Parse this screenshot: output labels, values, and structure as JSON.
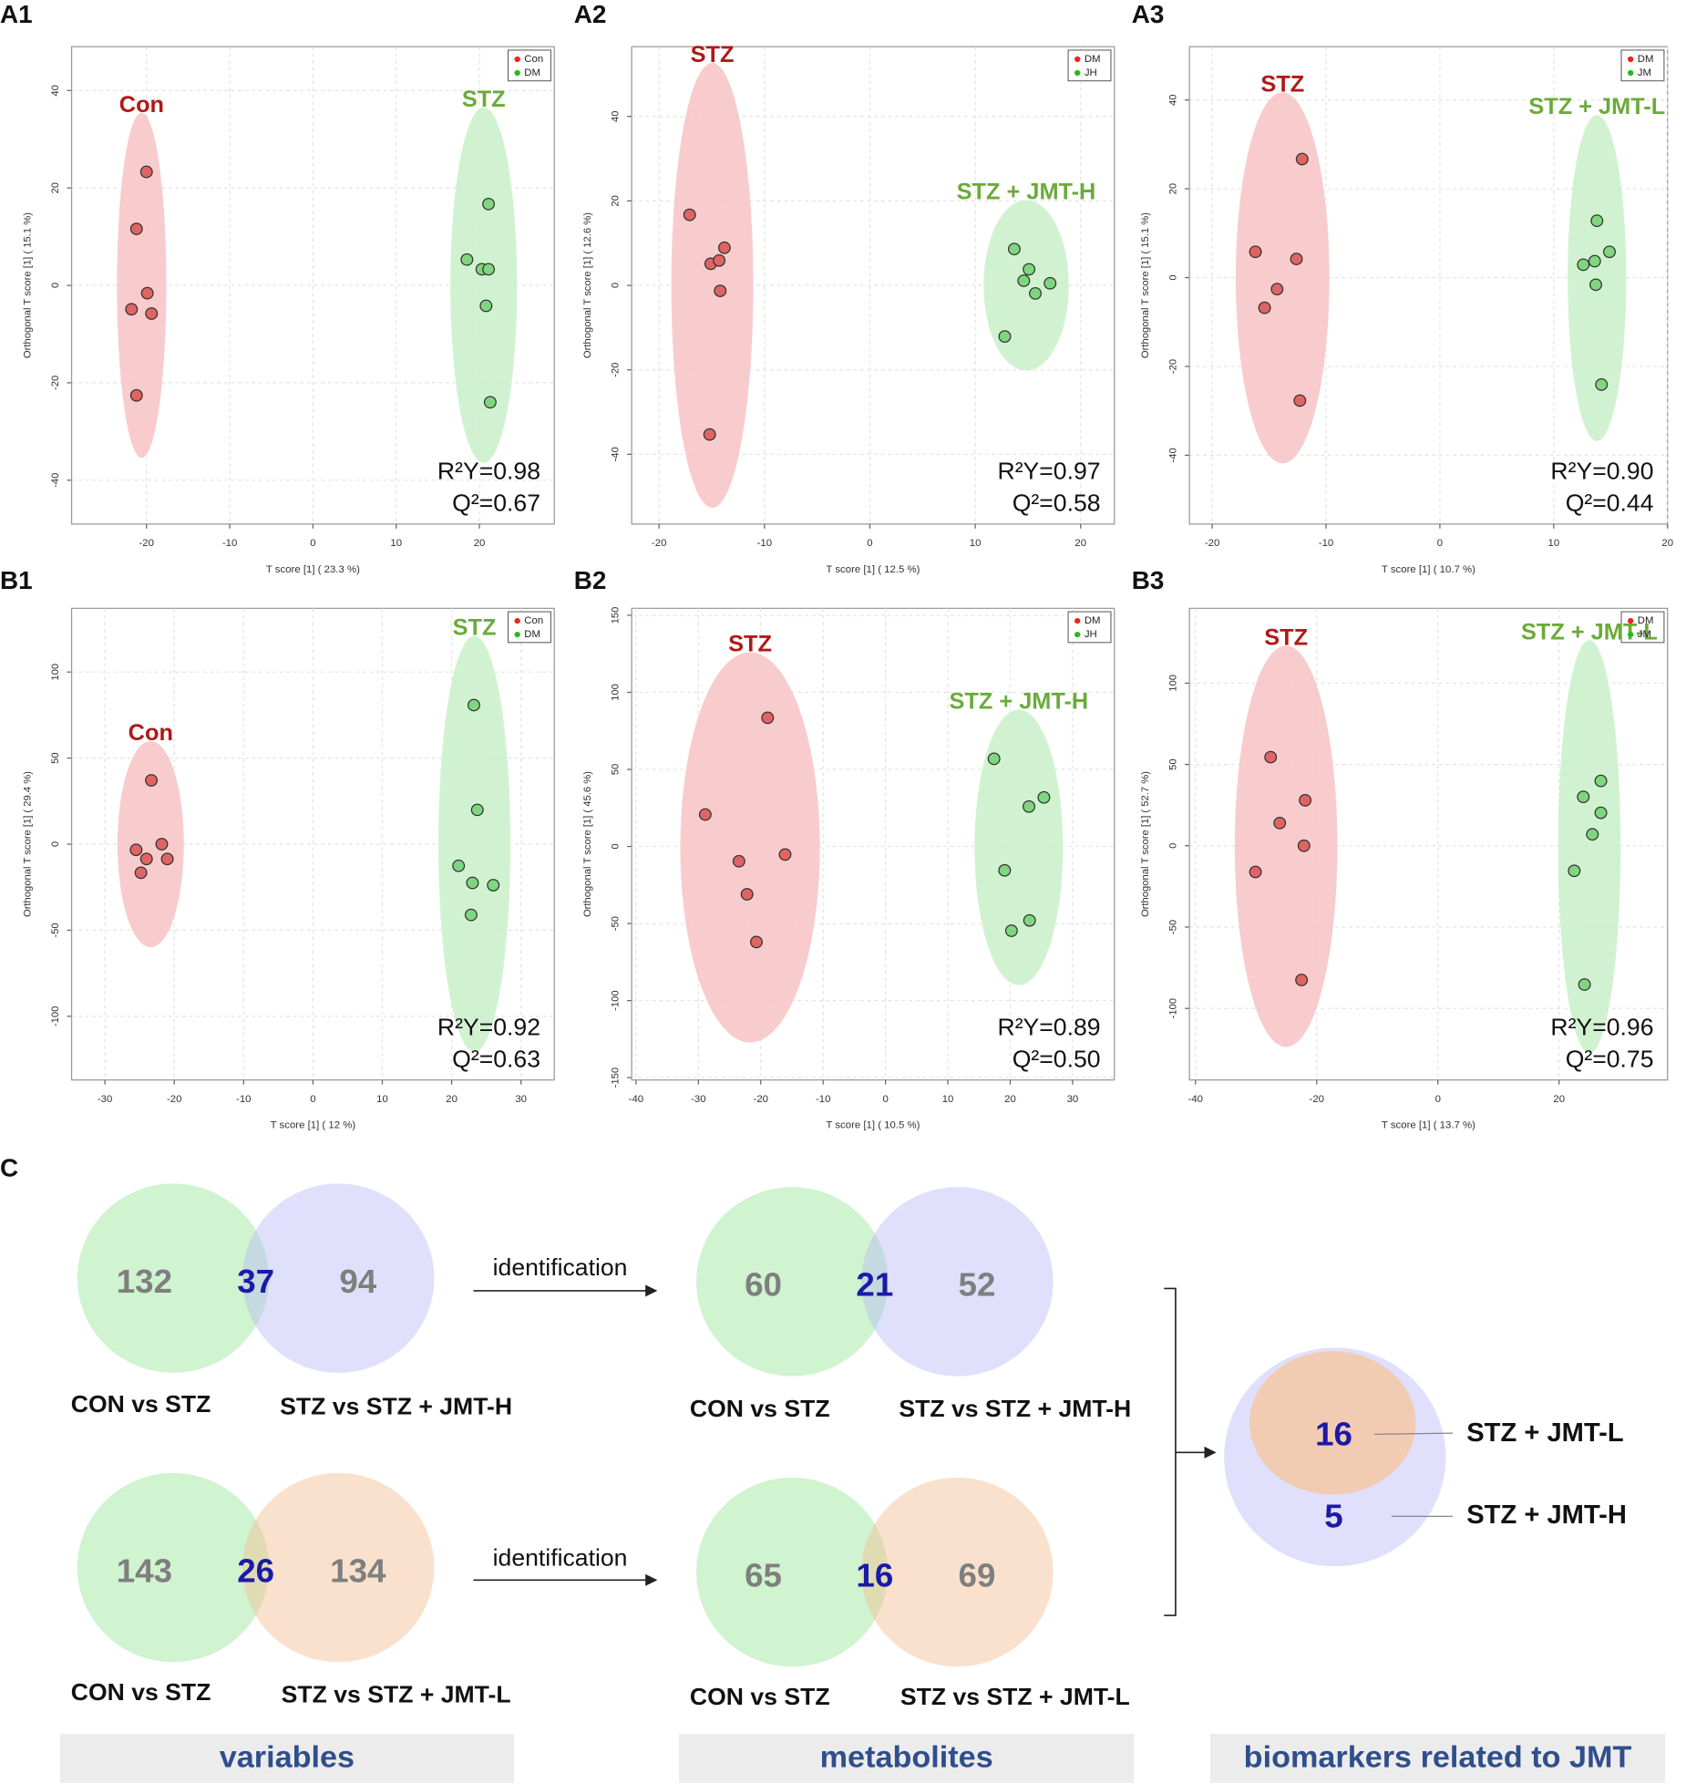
{
  "chart_data": [
    {
      "type": "scatter",
      "panel": "A1",
      "xlabel": "T score [1] ( 23.3 %)",
      "ylabel": "Orthogonal T score [1] ( 15.1 %)",
      "xlim": [
        -29,
        29
      ],
      "ylim": [
        -49,
        49
      ],
      "xticks": [
        -20,
        -10,
        0,
        10,
        20
      ],
      "yticks": [
        -40,
        -20,
        0,
        20,
        40
      ],
      "grid": true,
      "series": [
        {
          "name": "Con",
          "group_label": "Con",
          "color": "#e06464",
          "ellipse_color": "#f7c3c3",
          "label_color": "#b01818",
          "x": [
            -20,
            -21.2,
            -19.9,
            -21.8,
            -19.4,
            -21.2
          ],
          "y": [
            23.3,
            11.6,
            -1.6,
            -4.9,
            -5.8,
            -22.6
          ]
        },
        {
          "name": "DM",
          "group_label": "STZ",
          "color": "#7fd67f",
          "ellipse_color": "#c9f0c9",
          "label_color": "#6aab3a",
          "x": [
            21.1,
            18.5,
            20.3,
            21.1,
            20.8,
            21.3
          ],
          "y": [
            16.7,
            5.3,
            3.3,
            3.3,
            -4.2,
            -24
          ]
        }
      ],
      "r2y": "R²Y=0.98",
      "q2": "Q²=0.67"
    },
    {
      "type": "scatter",
      "panel": "A2",
      "xlabel": "T score [1] ( 12.5 %)",
      "ylabel": "Orthogonal T score [1] ( 12.6 %)",
      "xlim": [
        -22.6,
        23.2
      ],
      "ylim": [
        -56.5,
        56.5
      ],
      "xticks": [
        -20,
        -10,
        0,
        10,
        20
      ],
      "yticks": [
        -40,
        -20,
        0,
        20,
        40
      ],
      "grid": true,
      "series": [
        {
          "name": "DM",
          "group_label": "STZ",
          "color": "#e06464",
          "ellipse_color": "#f7c3c3",
          "label_color": "#b01818",
          "x": [
            -17.1,
            -15.1,
            -14.3,
            -13.8,
            -14.2,
            -15.2
          ],
          "y": [
            16.7,
            5.1,
            5.9,
            8.9,
            -1.3,
            -35.3
          ]
        },
        {
          "name": "JH",
          "group_label": "STZ + JMT-H",
          "color": "#7fd67f",
          "ellipse_color": "#c9f0c9",
          "label_color": "#6aab3a",
          "x": [
            13.7,
            15.1,
            14.6,
            15.7,
            17.1,
            12.8
          ],
          "y": [
            8.6,
            3.8,
            1.1,
            -1.9,
            0.5,
            -12.1
          ]
        }
      ],
      "r2y": "R²Y=0.97",
      "q2": "Q²=0.58"
    },
    {
      "type": "scatter",
      "panel": "A3",
      "xlabel": "T score [1] ( 10.7 %)",
      "ylabel": "Orthogonal T score [1] ( 15.1 %)",
      "xlim": [
        -22,
        20
      ],
      "ylim": [
        -55.5,
        52
      ],
      "xticks": [
        -20,
        -10,
        0,
        10,
        20
      ],
      "yticks": [
        -40,
        -20,
        0,
        20,
        40
      ],
      "grid": true,
      "series": [
        {
          "name": "DM",
          "group_label": "STZ",
          "color": "#e06464",
          "ellipse_color": "#f7c3c3",
          "label_color": "#b01818",
          "x": [
            -12.1,
            -16.2,
            -12.6,
            -14.3,
            -15.4,
            -12.3
          ],
          "y": [
            26.7,
            5.8,
            4.2,
            -2.6,
            -6.8,
            -27.7
          ]
        },
        {
          "name": "JM",
          "group_label": "STZ + JMT-L",
          "color": "#7fd67f",
          "ellipse_color": "#c9f0c9",
          "label_color": "#6aab3a",
          "x": [
            13.8,
            14.9,
            13.6,
            12.6,
            13.7,
            14.2
          ],
          "y": [
            12.8,
            5.8,
            3.7,
            2.9,
            -1.6,
            -24.1
          ]
        }
      ],
      "r2y": "R²Y=0.90",
      "q2": "Q²=0.44"
    },
    {
      "type": "scatter",
      "panel": "B1",
      "xlabel": "T score [1] ( 12 %)",
      "ylabel": "Orthogonal T score [1] ( 29.4 %)",
      "xlim": [
        -34.8,
        34.8
      ],
      "ylim": [
        -137,
        137
      ],
      "xticks": [
        -30,
        -20,
        -10,
        0,
        10,
        20,
        30
      ],
      "yticks": [
        -100,
        -50,
        0,
        50,
        100
      ],
      "grid": true,
      "series": [
        {
          "name": "Con",
          "group_label": "Con",
          "color": "#e06464",
          "ellipse_color": "#f7c3c3",
          "label_color": "#b01818",
          "x": [
            -23.3,
            -25.5,
            -24,
            -24.8,
            -21.8,
            -21
          ],
          "y": [
            37.1,
            -3.3,
            -8.6,
            -16.6,
            0,
            -8.6
          ]
        },
        {
          "name": "DM",
          "group_label": "STZ",
          "color": "#7fd67f",
          "ellipse_color": "#c9f0c9",
          "label_color": "#6aab3a",
          "x": [
            23.2,
            23.7,
            21,
            23,
            26,
            22.8
          ],
          "y": [
            80.8,
            19.9,
            -12.6,
            -22.5,
            -23.8,
            -41.1
          ]
        }
      ],
      "r2y": "R²Y=0.92",
      "q2": "Q²=0.63"
    },
    {
      "type": "scatter",
      "panel": "B2",
      "xlabel": "T score [1] ( 10.5 %)",
      "ylabel": "Orthogonal T score [1] ( 45.6 %)",
      "xlim": [
        -40.7,
        36.7
      ],
      "ylim": [
        -151.5,
        154.5
      ],
      "xticks": [
        -40,
        -30,
        -20,
        -10,
        0,
        10,
        20,
        30
      ],
      "yticks": [
        -150,
        -100,
        -50,
        0,
        50,
        100,
        150
      ],
      "grid": true,
      "series": [
        {
          "name": "DM",
          "group_label": "STZ",
          "color": "#e06464",
          "ellipse_color": "#f7c3c3",
          "label_color": "#b01818",
          "x": [
            -18.9,
            -28.9,
            -23.5,
            -16.1,
            -22.2,
            -20.7
          ],
          "y": [
            83.5,
            20.7,
            -9.6,
            -5.2,
            -31,
            -62
          ]
        },
        {
          "name": "JH",
          "group_label": "STZ + JMT-H",
          "color": "#7fd67f",
          "ellipse_color": "#c9f0c9",
          "label_color": "#6aab3a",
          "x": [
            17.4,
            23,
            25.4,
            19.1,
            23.1,
            20.2
          ],
          "y": [
            56.9,
            25.9,
            31.8,
            -15.5,
            -48,
            -54.7
          ]
        }
      ],
      "r2y": "R²Y=0.89",
      "q2": "Q²=0.50"
    },
    {
      "type": "scatter",
      "panel": "B3",
      "xlabel": "T score [1] ( 13.7 %)",
      "ylabel": "Orthogonal T score [1] ( 52.7 %)",
      "xlim": [
        -41,
        37.9
      ],
      "ylim": [
        -144,
        146
      ],
      "xticks": [
        -40,
        -20,
        0,
        20
      ],
      "yticks": [
        -100,
        -50,
        0,
        50,
        100
      ],
      "grid": true,
      "series": [
        {
          "name": "DM",
          "group_label": "STZ",
          "color": "#e06464",
          "ellipse_color": "#f7c3c3",
          "label_color": "#b01818",
          "x": [
            -27.6,
            -21.9,
            -26.1,
            -22.1,
            -30.1,
            -22.5
          ],
          "y": [
            54.5,
            28,
            14,
            0,
            -16.1,
            -82.5
          ]
        },
        {
          "name": "JM",
          "group_label": "STZ + JMT-L",
          "color": "#7fd67f",
          "ellipse_color": "#c9f0c9",
          "label_color": "#6aab3a",
          "x": [
            26.9,
            24,
            26.9,
            25.5,
            22.5,
            24.2
          ],
          "y": [
            39.9,
            30.1,
            20.3,
            7,
            -15.4,
            -85.3
          ]
        }
      ],
      "r2y": "R²Y=0.96",
      "q2": "Q²=0.75"
    }
  ],
  "panel_c": {
    "panel": "C",
    "arrow_label": "identification",
    "diagrams": [
      {
        "left": "132",
        "middle": "37",
        "right": "94",
        "labels": [
          "CON vs STZ",
          "STZ vs STZ + JMT-H"
        ],
        "right_color": "purple"
      },
      {
        "left": "143",
        "middle": "26",
        "right": "134",
        "labels": [
          "CON vs STZ",
          "STZ vs STZ + JMT-L"
        ],
        "right_color": "orange"
      },
      {
        "left": "60",
        "middle": "21",
        "right": "52",
        "labels": [
          "CON vs STZ",
          "STZ vs STZ + JMT-H"
        ],
        "right_color": "purple"
      },
      {
        "left": "65",
        "middle": "16",
        "right": "69",
        "labels": [
          "CON vs STZ",
          "STZ vs STZ + JMT-L"
        ],
        "right_color": "orange"
      }
    ],
    "final": {
      "inner": "16",
      "outer": "5",
      "inner_label": "STZ + JMT-L",
      "outer_label": "STZ + JMT-H"
    },
    "footers": [
      "variables",
      "metabolites",
      "biomarkers related to JMT"
    ]
  }
}
